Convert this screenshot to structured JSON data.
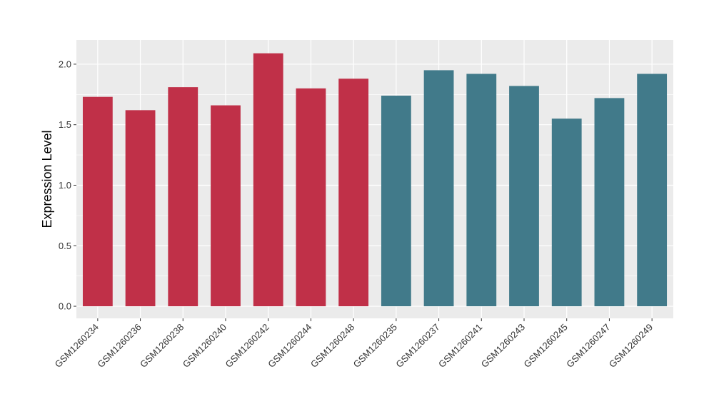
{
  "chart_data": {
    "type": "bar",
    "title": "",
    "xlabel": "",
    "ylabel": "Expression Level",
    "ylim": [
      -0.1,
      2.2
    ],
    "yticks": [
      "0.0",
      "0.5",
      "1.0",
      "1.5",
      "2.0"
    ],
    "grid": true,
    "legend": "none",
    "categories": [
      "GSM1260234",
      "GSM1260236",
      "GSM1260238",
      "GSM1260240",
      "GSM1260242",
      "GSM1260244",
      "GSM1260248",
      "GSM1260235",
      "GSM1260237",
      "GSM1260241",
      "GSM1260243",
      "GSM1260245",
      "GSM1260247",
      "GSM1260249"
    ],
    "values": [
      1.73,
      1.62,
      1.81,
      1.66,
      2.09,
      1.8,
      1.88,
      1.74,
      1.95,
      1.92,
      1.82,
      1.55,
      1.72,
      1.92
    ],
    "groups": [
      "a",
      "a",
      "a",
      "a",
      "a",
      "a",
      "a",
      "b",
      "b",
      "b",
      "b",
      "b",
      "b",
      "b"
    ],
    "group_colors": {
      "a": "#C03048",
      "b": "#417A8A"
    },
    "panel_background": "#EBEBEB",
    "gridline_color": "#FFFFFF"
  }
}
